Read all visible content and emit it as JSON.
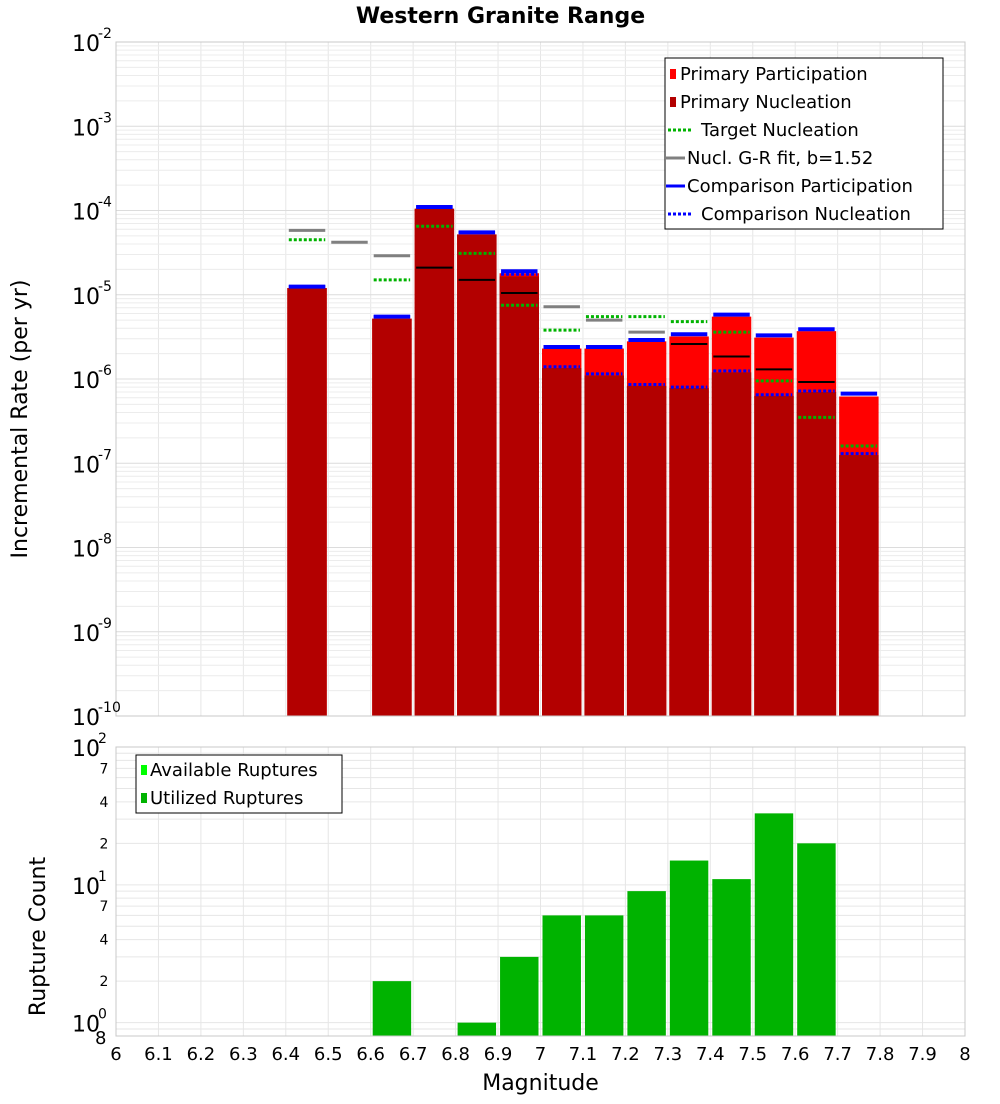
{
  "chart_data": [
    {
      "type": "bar",
      "title": "Western Granite Range",
      "xlabel": "",
      "ylabel": "Incremental Rate (per yr)",
      "y_scale": "log",
      "ylim": [
        1e-10,
        0.01
      ],
      "xlim": [
        6,
        8
      ],
      "bin_width": 0.1,
      "y_ticks": [
        {
          "base": "10",
          "exp": "-10"
        },
        {
          "base": "10",
          "exp": "-9"
        },
        {
          "base": "10",
          "exp": "-8"
        },
        {
          "base": "10",
          "exp": "-7"
        },
        {
          "base": "10",
          "exp": "-6"
        },
        {
          "base": "10",
          "exp": "-5"
        },
        {
          "base": "10",
          "exp": "-4"
        },
        {
          "base": "10",
          "exp": "-3"
        },
        {
          "base": "10",
          "exp": "-2"
        }
      ],
      "grid": true,
      "legend_position": "top-right",
      "colors": {
        "primary_participation": "#ff0000",
        "primary_nucleation": "#b30000",
        "target_nucleation": "#00b300",
        "gr_fit": "#808080",
        "comparison": "#0000ff",
        "gr_fit_black": "#000000"
      },
      "legend": [
        {
          "label": "Primary Participation",
          "key": "primary_participation",
          "style": "box"
        },
        {
          "label": "Primary Nucleation",
          "key": "primary_nucleation",
          "style": "box"
        },
        {
          "label": "Target Nucleation",
          "key": "target_nucleation",
          "style": "dotted"
        },
        {
          "label": "Nucl. G-R fit, b=1.52",
          "key": "gr_fit",
          "style": "solid"
        },
        {
          "label": "Comparison Participation",
          "key": "comparison",
          "style": "solid"
        },
        {
          "label": "Comparison Nucleation",
          "key": "comparison",
          "style": "dotted"
        }
      ],
      "x": [
        6.45,
        6.55,
        6.65,
        6.75,
        6.85,
        6.95,
        7.05,
        7.15,
        7.25,
        7.35,
        7.45,
        7.55,
        7.65,
        7.75
      ],
      "series": [
        {
          "name": "Primary Participation",
          "values": [
            1.2e-05,
            null,
            5.2e-06,
            0.000105,
            5.2e-05,
            1.8e-05,
            2.3e-06,
            2.3e-06,
            2.8e-06,
            3.2e-06,
            5.5e-06,
            3.1e-06,
            3.7e-06,
            6.2e-07
          ]
        },
        {
          "name": "Primary Nucleation",
          "values": [
            1.2e-05,
            null,
            5.2e-06,
            0.000105,
            5.2e-05,
            1.65e-05,
            1.35e-06,
            1.1e-06,
            8.3e-07,
            7.8e-07,
            1.2e-06,
            6.3e-07,
            7e-07,
            1.25e-07
          ]
        },
        {
          "name": "Target Nucleation",
          "values": [
            4.5e-05,
            null,
            1.5e-05,
            6.5e-05,
            3.1e-05,
            7.5e-06,
            3.8e-06,
            5.5e-06,
            5.5e-06,
            4.8e-06,
            3.6e-06,
            9.5e-07,
            3.5e-07,
            1.6e-07
          ]
        },
        {
          "name": "Nucl. G-R fit, b=1.52",
          "values": [
            5.8e-05,
            4.2e-05,
            2.9e-05,
            null,
            null,
            null,
            7.2e-06,
            5e-06,
            3.6e-06,
            null,
            null,
            null,
            null,
            null
          ]
        },
        {
          "name": "Nucl. G-R fit, b=1.52 (dark)",
          "values": [
            null,
            null,
            null,
            2.1e-05,
            1.5e-05,
            1.05e-05,
            null,
            null,
            null,
            2.6e-06,
            1.85e-06,
            1.3e-06,
            9.2e-07,
            null
          ]
        },
        {
          "name": "Comparison Participation",
          "values": [
            1.25e-05,
            null,
            5.5e-06,
            0.00011,
            5.5e-05,
            1.9e-05,
            2.4e-06,
            2.4e-06,
            2.9e-06,
            3.4e-06,
            5.8e-06,
            3.3e-06,
            3.9e-06,
            6.7e-07
          ]
        },
        {
          "name": "Comparison Nucleation",
          "values": [
            1.25e-05,
            null,
            5.5e-06,
            0.00011,
            5.5e-05,
            1.75e-05,
            1.4e-06,
            1.15e-06,
            8.6e-07,
            8e-07,
            1.25e-06,
            6.5e-07,
            7.2e-07,
            1.3e-07
          ]
        }
      ]
    },
    {
      "type": "bar",
      "title": "",
      "xlabel": "Magnitude",
      "ylabel": "Rupture Count",
      "y_scale": "log",
      "ylim": [
        0.8,
        100
      ],
      "xlim": [
        6,
        8
      ],
      "x_ticks": [
        "6",
        "6.1",
        "6.2",
        "6.3",
        "6.4",
        "6.5",
        "6.6",
        "6.7",
        "6.8",
        "6.9",
        "7",
        "7.1",
        "7.2",
        "7.3",
        "7.4",
        "7.5",
        "7.6",
        "7.7",
        "7.8",
        "7.9",
        "8"
      ],
      "y_major_ticks": [
        {
          "base": "10",
          "exp": "0",
          "value": 1
        },
        {
          "base": "10",
          "exp": "1",
          "value": 10
        },
        {
          "base": "10",
          "exp": "2",
          "value": 100
        }
      ],
      "y_minor_ticks": [
        {
          "label": "2",
          "value": 2
        },
        {
          "label": "4",
          "value": 4
        },
        {
          "label": "7",
          "value": 7
        },
        {
          "label": "2",
          "value": 20
        },
        {
          "label": "4",
          "value": 40
        },
        {
          "label": "7",
          "value": 70
        }
      ],
      "y_bottom_label": "8",
      "grid": true,
      "legend_position": "top-left",
      "colors": {
        "available": "#00ff00",
        "utilized": "#00b300"
      },
      "legend": [
        {
          "label": "Available Ruptures",
          "key": "available"
        },
        {
          "label": "Utilized Ruptures",
          "key": "utilized"
        }
      ],
      "x": [
        6.65,
        6.85,
        6.95,
        7.05,
        7.15,
        7.25,
        7.35,
        7.45,
        7.55,
        7.65
      ],
      "series": [
        {
          "name": "Utilized Ruptures",
          "values": [
            2,
            1,
            3,
            6,
            6,
            9,
            15,
            11,
            33,
            20
          ]
        }
      ]
    }
  ]
}
